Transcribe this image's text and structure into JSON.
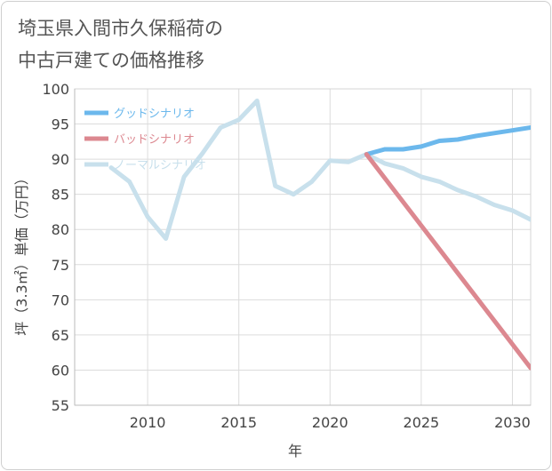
{
  "chart_data": {
    "type": "line",
    "title_lines": [
      "埼玉県入間市久保稲荷の",
      "中古戸建ての価格推移"
    ],
    "xlabel": "年",
    "ylabel": "坪（3.3㎡）単価（万円）",
    "xlim": [
      2006,
      2031
    ],
    "ylim": [
      55,
      100
    ],
    "xticks": [
      2010,
      2015,
      2020,
      2025,
      2030
    ],
    "yticks": [
      55,
      60,
      65,
      70,
      75,
      80,
      85,
      90,
      95,
      100
    ],
    "grid": true,
    "legend_position": "top-left",
    "series": [
      {
        "name": "ノーマルシナリオ",
        "color": "#c8e0ec",
        "x": [
          2008,
          2009,
          2010,
          2011,
          2012,
          2013,
          2014,
          2015,
          2016,
          2017,
          2018,
          2019,
          2020,
          2021,
          2022,
          2023,
          2024,
          2025,
          2026,
          2027,
          2028,
          2029,
          2030,
          2031
        ],
        "values": [
          88.8,
          86.8,
          81.8,
          78.7,
          87.5,
          90.8,
          94.5,
          95.6,
          98.3,
          86.2,
          85.0,
          86.8,
          89.8,
          89.6,
          90.7,
          89.4,
          88.7,
          87.5,
          86.8,
          85.6,
          84.7,
          83.5,
          82.7,
          81.4
        ]
      },
      {
        "name": "グッドシナリオ",
        "color": "#6cb8ec",
        "x": [
          2022,
          2023,
          2024,
          2025,
          2026,
          2027,
          2028,
          2029,
          2030,
          2031
        ],
        "values": [
          90.7,
          91.4,
          91.4,
          91.8,
          92.6,
          92.8,
          93.3,
          93.7,
          94.1,
          94.5
        ]
      },
      {
        "name": "バッドシナリオ",
        "color": "#dc8890",
        "x": [
          2022,
          2031
        ],
        "values": [
          90.7,
          60.3
        ]
      }
    ],
    "legend": [
      {
        "name": "グッドシナリオ",
        "color": "#6cb8ec"
      },
      {
        "name": "バッドシナリオ",
        "color": "#dc8890"
      },
      {
        "name": "ノーマルシナリオ",
        "color": "#c8e0ec"
      }
    ]
  }
}
